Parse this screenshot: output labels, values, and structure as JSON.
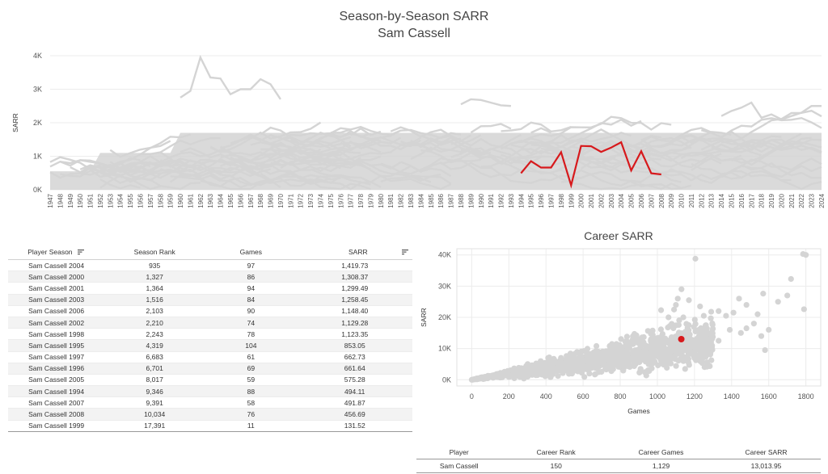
{
  "header": {
    "title": "Season-by-Season SARR",
    "subtitle": "Sam Cassell"
  },
  "chart_data": [
    {
      "type": "line",
      "ylabel": "SARR",
      "ylim": [
        0,
        4000
      ],
      "yticks": [
        0,
        1000,
        2000,
        3000,
        4000
      ],
      "ytick_labels": [
        "0K",
        "1K",
        "2K",
        "3K",
        "4K"
      ],
      "x_start": 1947,
      "x_end": 2024,
      "grid": true,
      "colors": {
        "highlight": "#d7191c",
        "background": "#d4d4d4"
      },
      "highlight_series": {
        "name": "Sam Cassell",
        "x": [
          1994,
          1995,
          1996,
          1997,
          1998,
          1999,
          2000,
          2001,
          2002,
          2003,
          2004,
          2005,
          2006,
          2007,
          2008
        ],
        "values": [
          494.11,
          853.05,
          661.64,
          662.73,
          1123.35,
          131.52,
          1308.37,
          1299.49,
          1129.28,
          1258.45,
          1419.73,
          575.28,
          1148.4,
          491.87,
          456.69
        ]
      }
    },
    {
      "type": "scatter",
      "title": "Career SARR",
      "xlabel": "Games",
      "ylabel": "SARR",
      "xlim": [
        -80,
        1880
      ],
      "ylim": [
        -2000,
        42000
      ],
      "xticks": [
        0,
        200,
        400,
        600,
        800,
        1000,
        1200,
        1400,
        1600,
        1800
      ],
      "yticks": [
        0,
        10000,
        20000,
        30000,
        40000
      ],
      "ytick_labels": [
        "0K",
        "10K",
        "20K",
        "30K",
        "40K"
      ],
      "grid": true,
      "colors": {
        "highlight": "#d7191c",
        "background": "#d4d4d4"
      },
      "highlight_point": {
        "x": 1129,
        "y": 13013.95
      },
      "outlier_points": [
        {
          "x": 1205,
          "y": 38800
        },
        {
          "x": 1785,
          "y": 40300
        },
        {
          "x": 1800,
          "y": 40000
        },
        {
          "x": 1790,
          "y": 22600
        },
        {
          "x": 1720,
          "y": 32300
        },
        {
          "x": 1650,
          "y": 25000
        },
        {
          "x": 1700,
          "y": 27000
        },
        {
          "x": 1570,
          "y": 27600
        },
        {
          "x": 1540,
          "y": 21000
        },
        {
          "x": 1480,
          "y": 24000
        },
        {
          "x": 1440,
          "y": 26000
        },
        {
          "x": 1410,
          "y": 21500
        },
        {
          "x": 1370,
          "y": 20500
        },
        {
          "x": 1330,
          "y": 22000
        },
        {
          "x": 1290,
          "y": 21800
        },
        {
          "x": 1250,
          "y": 20500
        },
        {
          "x": 1560,
          "y": 14000
        },
        {
          "x": 1600,
          "y": 16000
        },
        {
          "x": 1480,
          "y": 16500
        },
        {
          "x": 1520,
          "y": 18000
        },
        {
          "x": 1390,
          "y": 16000
        },
        {
          "x": 1450,
          "y": 15000
        },
        {
          "x": 1580,
          "y": 9500
        },
        {
          "x": 1330,
          "y": 12500
        },
        {
          "x": 1260,
          "y": 16000
        },
        {
          "x": 1110,
          "y": 26000
        },
        {
          "x": 1090,
          "y": 22500
        },
        {
          "x": 1170,
          "y": 25500
        },
        {
          "x": 1020,
          "y": 22300
        },
        {
          "x": 1060,
          "y": 20000
        },
        {
          "x": 1140,
          "y": 20000
        },
        {
          "x": 1230,
          "y": 23500
        },
        {
          "x": 1130,
          "y": 29000
        },
        {
          "x": 1100,
          "y": 24000
        }
      ]
    }
  ],
  "season_table": {
    "headers": [
      "Player Season",
      "Season Rank",
      "Games",
      "SARR"
    ],
    "rows": [
      [
        "Sam Cassell 2004",
        "935",
        "97",
        "1,419.73"
      ],
      [
        "Sam Cassell 2000",
        "1,327",
        "86",
        "1,308.37"
      ],
      [
        "Sam Cassell 2001",
        "1,364",
        "94",
        "1,299.49"
      ],
      [
        "Sam Cassell 2003",
        "1,516",
        "84",
        "1,258.45"
      ],
      [
        "Sam Cassell 2006",
        "2,103",
        "90",
        "1,148.40"
      ],
      [
        "Sam Cassell 2002",
        "2,210",
        "74",
        "1,129.28"
      ],
      [
        "Sam Cassell 1998",
        "2,243",
        "78",
        "1,123.35"
      ],
      [
        "Sam Cassell 1995",
        "4,319",
        "104",
        "853.05"
      ],
      [
        "Sam Cassell 1997",
        "6,683",
        "61",
        "662.73"
      ],
      [
        "Sam Cassell 1996",
        "6,701",
        "69",
        "661.64"
      ],
      [
        "Sam Cassell 2005",
        "8,017",
        "59",
        "575.28"
      ],
      [
        "Sam Cassell 1994",
        "9,346",
        "88",
        "494.11"
      ],
      [
        "Sam Cassell 2007",
        "9,391",
        "58",
        "491.87"
      ],
      [
        "Sam Cassell 2008",
        "10,034",
        "76",
        "456.69"
      ],
      [
        "Sam Cassell 1999",
        "17,391",
        "11",
        "131.52"
      ]
    ]
  },
  "career_table": {
    "headers": [
      "Player",
      "Career Rank",
      "Career Games",
      "Career SARR"
    ],
    "rows": [
      [
        "Sam Cassell",
        "150",
        "1,129",
        "13,013.95"
      ]
    ]
  }
}
